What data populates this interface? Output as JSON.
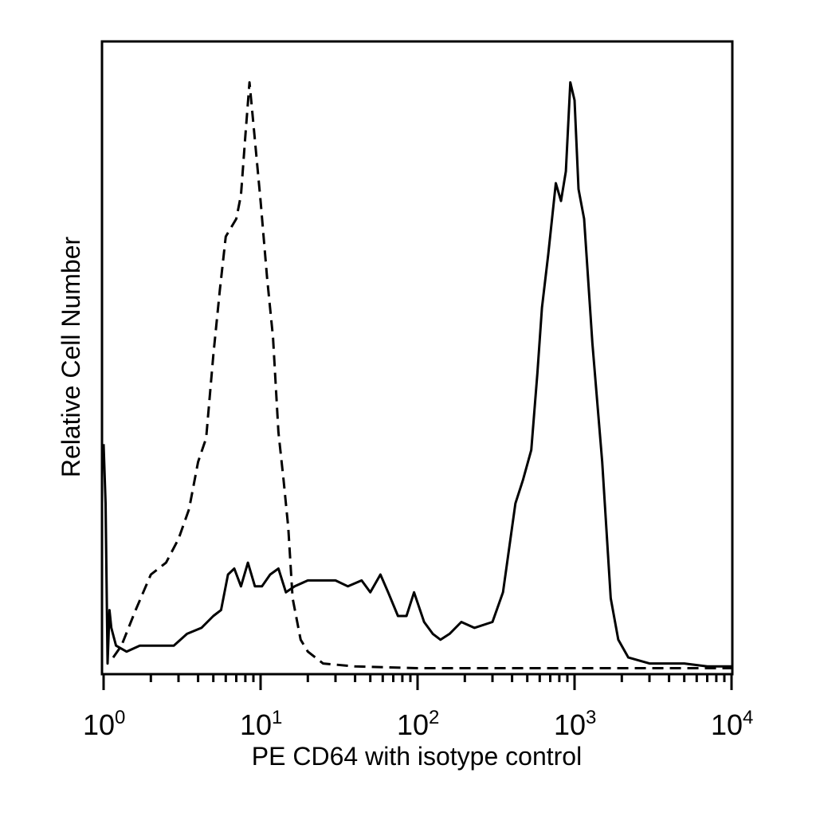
{
  "chart_data": {
    "type": "line",
    "title": "",
    "xlabel": "PE CD64 with isotype control",
    "ylabel": "Relative Cell Number",
    "xscale": "log",
    "xlim": [
      1,
      10000
    ],
    "ylim": [
      0,
      1.0
    ],
    "grid": false,
    "x_ticks": [
      {
        "base": "10",
        "exp": "0",
        "value": 1
      },
      {
        "base": "10",
        "exp": "1",
        "value": 10
      },
      {
        "base": "10",
        "exp": "2",
        "value": 100
      },
      {
        "base": "10",
        "exp": "3",
        "value": 1000
      },
      {
        "base": "10",
        "exp": "4",
        "value": 10000
      }
    ],
    "series": [
      {
        "style": "solid",
        "color": "#000000",
        "points": [
          [
            1.0,
            0.38
          ],
          [
            1.03,
            0.28
          ],
          [
            1.06,
            0.01
          ],
          [
            1.09,
            0.1
          ],
          [
            1.12,
            0.07
          ],
          [
            1.2,
            0.04
          ],
          [
            1.4,
            0.03
          ],
          [
            1.7,
            0.04
          ],
          [
            2.2,
            0.04
          ],
          [
            2.8,
            0.04
          ],
          [
            3.4,
            0.06
          ],
          [
            4.2,
            0.07
          ],
          [
            5.0,
            0.09
          ],
          [
            5.6,
            0.1
          ],
          [
            6.2,
            0.16
          ],
          [
            6.8,
            0.17
          ],
          [
            7.5,
            0.14
          ],
          [
            8.3,
            0.18
          ],
          [
            9.2,
            0.14
          ],
          [
            10.2,
            0.14
          ],
          [
            11.5,
            0.16
          ],
          [
            13.0,
            0.17
          ],
          [
            14.5,
            0.13
          ],
          [
            16.5,
            0.14
          ],
          [
            20.0,
            0.15
          ],
          [
            25.0,
            0.15
          ],
          [
            30.0,
            0.15
          ],
          [
            36.0,
            0.14
          ],
          [
            44.0,
            0.15
          ],
          [
            50.0,
            0.13
          ],
          [
            58.0,
            0.16
          ],
          [
            65.0,
            0.13
          ],
          [
            75.0,
            0.09
          ],
          [
            85.0,
            0.09
          ],
          [
            95.0,
            0.13
          ],
          [
            110.0,
            0.08
          ],
          [
            125.0,
            0.06
          ],
          [
            140.0,
            0.05
          ],
          [
            160.0,
            0.06
          ],
          [
            190.0,
            0.08
          ],
          [
            230.0,
            0.07
          ],
          [
            300.0,
            0.08
          ],
          [
            350.0,
            0.13
          ],
          [
            420.0,
            0.28
          ],
          [
            470.0,
            0.32
          ],
          [
            530.0,
            0.37
          ],
          [
            580.0,
            0.5
          ],
          [
            620.0,
            0.61
          ],
          [
            680.0,
            0.7
          ],
          [
            760.0,
            0.82
          ],
          [
            820.0,
            0.79
          ],
          [
            880.0,
            0.84
          ],
          [
            940.0,
            0.99
          ],
          [
            1000.0,
            0.96
          ],
          [
            1060.0,
            0.81
          ],
          [
            1150.0,
            0.76
          ],
          [
            1300.0,
            0.55
          ],
          [
            1500.0,
            0.35
          ],
          [
            1700.0,
            0.12
          ],
          [
            1900.0,
            0.05
          ],
          [
            2200.0,
            0.02
          ],
          [
            3000.0,
            0.01
          ],
          [
            5000.0,
            0.01
          ],
          [
            7000.0,
            0.005
          ],
          [
            10000.0,
            0.005
          ]
        ]
      },
      {
        "style": "dashed",
        "color": "#000000",
        "points": [
          [
            1.15,
            0.02
          ],
          [
            1.3,
            0.04
          ],
          [
            1.6,
            0.1
          ],
          [
            2.0,
            0.16
          ],
          [
            2.5,
            0.18
          ],
          [
            3.0,
            0.22
          ],
          [
            3.5,
            0.27
          ],
          [
            4.0,
            0.35
          ],
          [
            4.5,
            0.39
          ],
          [
            5.0,
            0.53
          ],
          [
            5.5,
            0.64
          ],
          [
            6.0,
            0.73
          ],
          [
            7.0,
            0.76
          ],
          [
            7.5,
            0.8
          ],
          [
            8.0,
            0.9
          ],
          [
            8.5,
            0.99
          ],
          [
            9.0,
            0.92
          ],
          [
            10.0,
            0.79
          ],
          [
            11.0,
            0.66
          ],
          [
            12.0,
            0.56
          ],
          [
            13.0,
            0.4
          ],
          [
            14.0,
            0.32
          ],
          [
            15.0,
            0.24
          ],
          [
            16.0,
            0.12
          ],
          [
            18.0,
            0.05
          ],
          [
            20.0,
            0.03
          ],
          [
            25.0,
            0.01
          ],
          [
            40.0,
            0.005
          ],
          [
            100.0,
            0.002
          ],
          [
            1000.0,
            0.002
          ],
          [
            10000.0,
            0.002
          ]
        ]
      }
    ]
  }
}
